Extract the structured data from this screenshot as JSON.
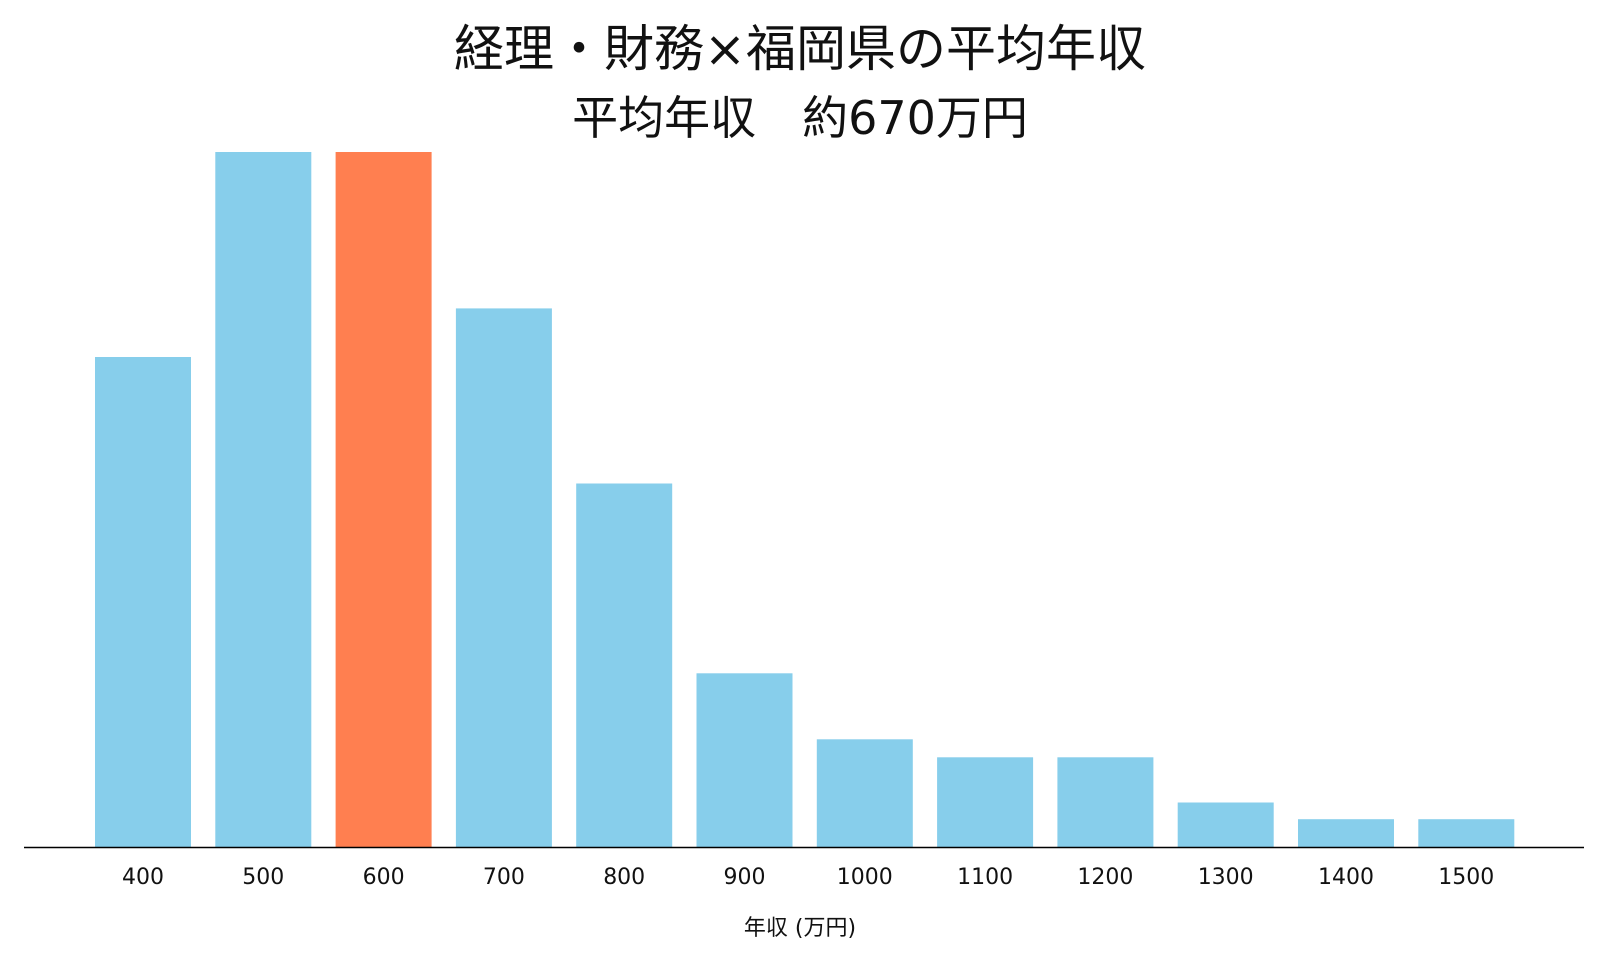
{
  "chart_data": {
    "type": "bar",
    "title": "経理・財務×福岡県の平均年収",
    "subtitle": "平均年収　約670万円",
    "xlabel": "年収 (万円)",
    "ylabel": "",
    "categories": [
      "400",
      "500",
      "600",
      "700",
      "800",
      "900",
      "1000",
      "1100",
      "1200",
      "1300",
      "1400",
      "1500"
    ],
    "values": [
      70.5,
      100,
      100,
      77.5,
      52.3,
      25,
      15.5,
      12.9,
      12.9,
      6.4,
      4,
      4
    ],
    "ylim": [
      0,
      100
    ],
    "highlight_category": "600",
    "grid": false,
    "colors": {
      "bar": "#87CEEB",
      "highlight": "#FF7F50",
      "axis": "#000000"
    }
  }
}
